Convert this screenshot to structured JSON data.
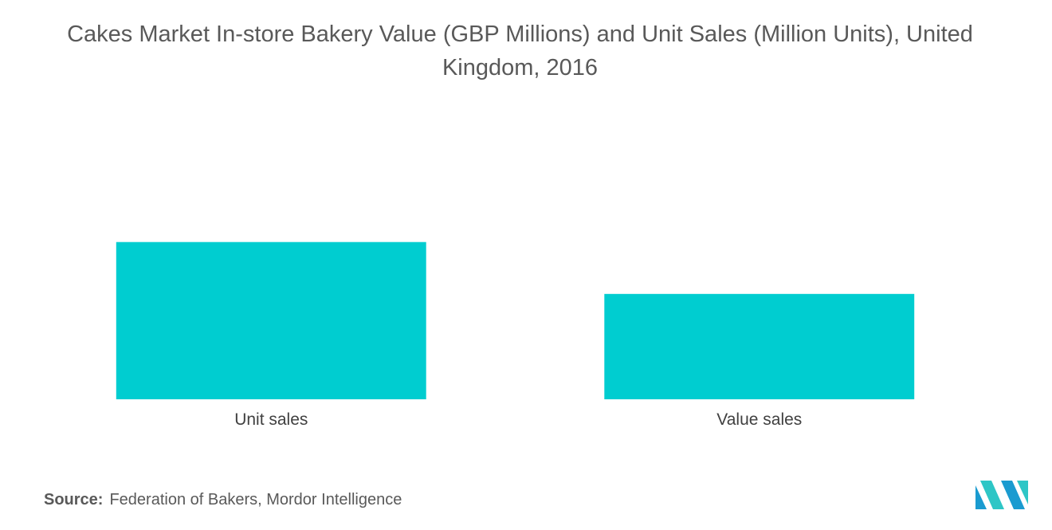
{
  "chart_data": {
    "type": "bar",
    "title": "Cakes Market In-store Bakery Value (GBP Millions) and Unit Sales (Million Units), United Kingdom, 2016",
    "categories": [
      "Unit sales",
      "Value sales"
    ],
    "values": [
      100,
      67
    ],
    "xlabel": "",
    "ylabel": "",
    "ylim": [
      0,
      150
    ],
    "grid": false,
    "legend": "none",
    "bar_color": "#00cdd0"
  },
  "source": {
    "label": "Source:",
    "text": "Federation of Bakers, Mordor Intelligence"
  },
  "logo": {
    "icon": "mordor-intelligence-logo-icon",
    "colors": [
      "#1a9bd0",
      "#2ec6c6"
    ]
  }
}
